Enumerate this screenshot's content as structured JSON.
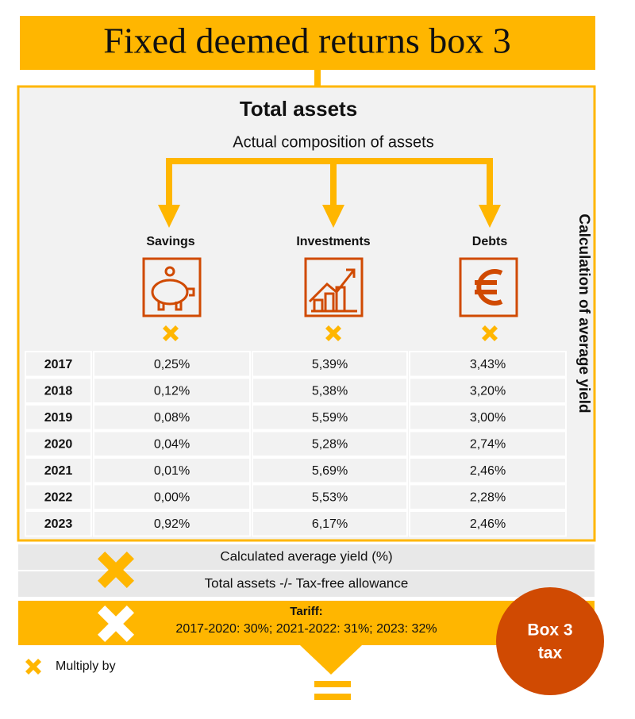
{
  "title": "Fixed deemed returns box 3",
  "heading": "Total assets",
  "subheading": "Actual composition of assets",
  "columns": [
    "Savings",
    "Investments",
    "Debts"
  ],
  "side_label": "Calculation of average yield",
  "table": {
    "rows": [
      [
        "2017",
        "0,25%",
        "5,39%",
        "3,43%"
      ],
      [
        "2018",
        "0,12%",
        "5,38%",
        "3,20%"
      ],
      [
        "2019",
        "0,08%",
        "5,59%",
        "3,00%"
      ],
      [
        "2020",
        "0,04%",
        "5,28%",
        "2,74%"
      ],
      [
        "2021",
        "0,01%",
        "5,69%",
        "2,46%"
      ],
      [
        "2022",
        "0,00%",
        "5,53%",
        "2,28%"
      ],
      [
        "2023",
        "0,92%",
        "6,17%",
        "2,46%"
      ]
    ]
  },
  "steps": [
    "Calculated average yield (%)",
    "Total assets -/- Tax-free allowance"
  ],
  "tariff": {
    "label": "Tariff:",
    "text": "2017-2020: 30%; 2021-2022: 31%; 2023: 32%"
  },
  "result": [
    "Box 3",
    "tax"
  ],
  "legend": "Multiply by"
}
